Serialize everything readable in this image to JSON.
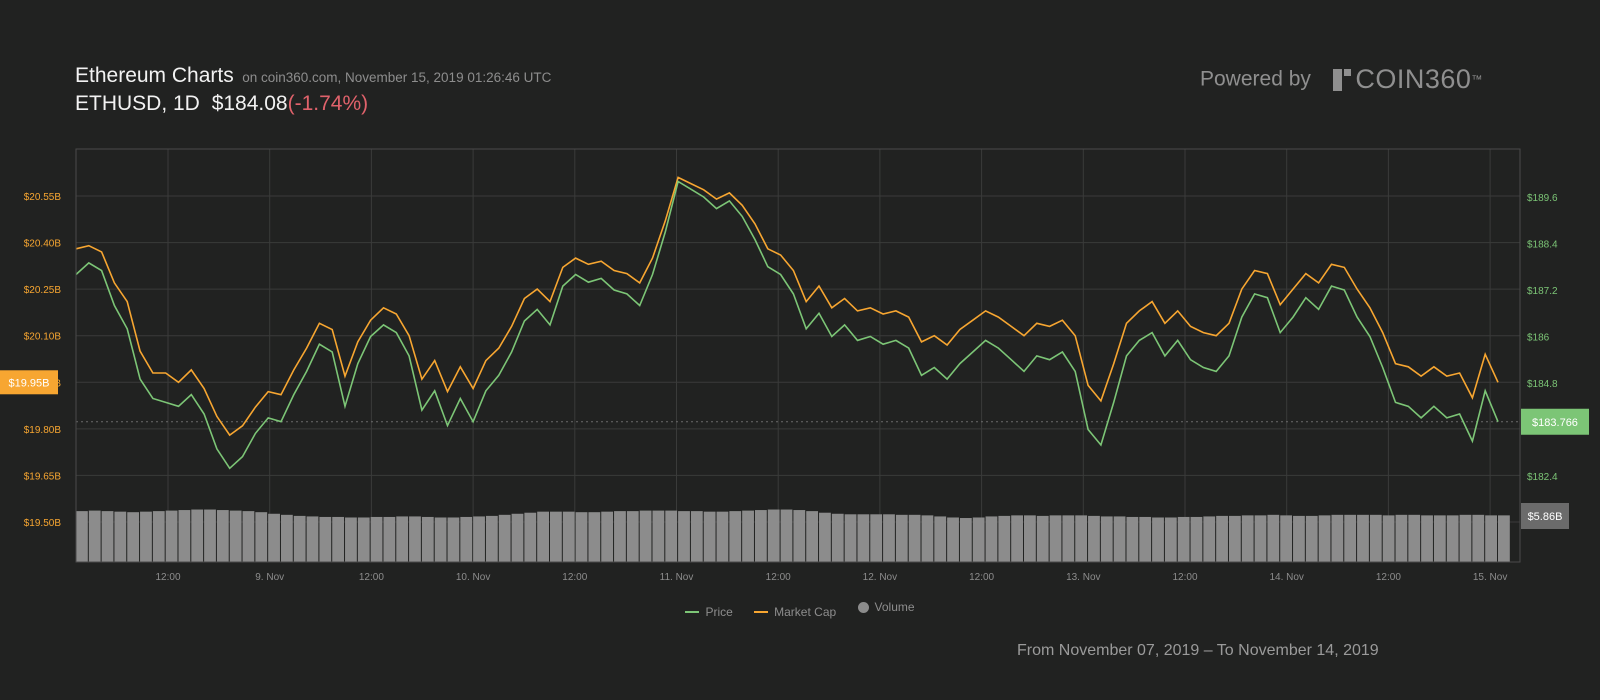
{
  "header": {
    "title": "Ethereum Charts",
    "subtitle": "on coin360.com, November 15, 2019 01:26:46 UTC",
    "pair": "ETHUSD, 1D",
    "price": "$184.08",
    "change": "(-1.74%)"
  },
  "branding": {
    "powered_by": "Powered by",
    "logo_text": "COIN360",
    "logo_tm": "™"
  },
  "footer": {
    "range": "From November 07, 2019 – To November 14, 2019"
  },
  "colors": {
    "background": "#212221",
    "price": "#7cc576",
    "market_cap": "#f7a631",
    "volume": "#8c8c8c",
    "change": "#e0626b"
  },
  "chart_data": {
    "type": "line",
    "x_ticks": [
      "12:00",
      "9. Nov",
      "12:00",
      "10. Nov",
      "12:00",
      "11. Nov",
      "12:00",
      "12. Nov",
      "12:00",
      "13. Nov",
      "12:00",
      "14. Nov",
      "12:00",
      "15. Nov"
    ],
    "y_left_ticks": [
      "$19.50B",
      "$19.65B",
      "$19.80B",
      "$19.95B",
      "$20.10B",
      "$20.25B",
      "$20.40B",
      "$20.55B"
    ],
    "y_right_ticks": [
      "$182.4",
      "$184.8",
      "$186",
      "$187.2",
      "$188.4",
      "$189.6"
    ],
    "y_left_range": [
      19.5,
      20.55
    ],
    "y_right_range": [
      182.4,
      189.6
    ],
    "current_market_cap_label": "$19.95B",
    "current_price_label": "$183.766",
    "current_volume_label": "$5.86B",
    "legend": [
      "Price",
      "Market Cap",
      "Volume"
    ],
    "grid": true,
    "series": [
      {
        "name": "Price",
        "axis": "right",
        "values": [
          187.6,
          187.9,
          187.7,
          186.8,
          186.2,
          184.9,
          184.4,
          184.3,
          184.2,
          184.5,
          184.0,
          183.1,
          182.6,
          182.9,
          183.5,
          183.9,
          183.8,
          184.5,
          185.1,
          185.8,
          185.6,
          184.2,
          185.3,
          186.0,
          186.3,
          186.1,
          185.5,
          184.1,
          184.6,
          183.7,
          184.4,
          183.8,
          184.6,
          185.0,
          185.6,
          186.4,
          186.7,
          186.3,
          187.3,
          187.6,
          187.4,
          187.5,
          187.2,
          187.1,
          186.8,
          187.6,
          188.7,
          190.0,
          189.8,
          189.6,
          189.3,
          189.5,
          189.1,
          188.5,
          187.8,
          187.6,
          187.1,
          186.2,
          186.6,
          186.0,
          186.3,
          185.9,
          186.0,
          185.8,
          185.9,
          185.7,
          185.0,
          185.2,
          184.9,
          185.3,
          185.6,
          185.9,
          185.7,
          185.4,
          185.1,
          185.5,
          185.4,
          185.6,
          185.1,
          183.6,
          183.2,
          184.3,
          185.5,
          185.9,
          186.1,
          185.5,
          185.9,
          185.4,
          185.2,
          185.1,
          185.5,
          186.5,
          187.1,
          187.0,
          186.1,
          186.5,
          187.0,
          186.7,
          187.3,
          187.2,
          186.5,
          186.0,
          185.2,
          184.3,
          184.2,
          183.9,
          184.2,
          183.9,
          184.0,
          183.3,
          184.6,
          183.8
        ],
        "note": "price series sampled across Nov 7 – Nov 14"
      },
      {
        "name": "Market Cap",
        "axis": "left",
        "values": [
          20.38,
          20.39,
          20.37,
          20.27,
          20.21,
          20.05,
          19.98,
          19.98,
          19.95,
          19.99,
          19.93,
          19.84,
          19.78,
          19.81,
          19.87,
          19.92,
          19.91,
          19.99,
          20.06,
          20.14,
          20.12,
          19.97,
          20.08,
          20.15,
          20.19,
          20.17,
          20.1,
          19.96,
          20.02,
          19.92,
          20.0,
          19.93,
          20.02,
          20.06,
          20.13,
          20.22,
          20.25,
          20.21,
          20.32,
          20.35,
          20.33,
          20.34,
          20.31,
          20.3,
          20.27,
          20.35,
          20.47,
          20.61,
          20.59,
          20.57,
          20.54,
          20.56,
          20.52,
          20.46,
          20.38,
          20.36,
          20.31,
          20.21,
          20.26,
          20.19,
          20.22,
          20.18,
          20.19,
          20.17,
          20.18,
          20.16,
          20.08,
          20.1,
          20.07,
          20.12,
          20.15,
          20.18,
          20.16,
          20.13,
          20.1,
          20.14,
          20.13,
          20.15,
          20.1,
          19.94,
          19.89,
          20.01,
          20.14,
          20.18,
          20.21,
          20.14,
          20.18,
          20.13,
          20.11,
          20.1,
          20.14,
          20.25,
          20.31,
          20.3,
          20.2,
          20.25,
          20.3,
          20.27,
          20.33,
          20.32,
          20.25,
          20.19,
          20.11,
          20.01,
          20.0,
          19.97,
          20.0,
          19.97,
          19.98,
          19.9,
          20.04,
          19.95
        ]
      },
      {
        "name": "Volume",
        "axis": "volume",
        "values": [
          0.96,
          0.97,
          0.96,
          0.95,
          0.94,
          0.95,
          0.96,
          0.97,
          0.98,
          0.99,
          0.99,
          0.98,
          0.97,
          0.96,
          0.94,
          0.91,
          0.89,
          0.87,
          0.86,
          0.85,
          0.85,
          0.84,
          0.84,
          0.85,
          0.85,
          0.86,
          0.86,
          0.85,
          0.84,
          0.84,
          0.85,
          0.86,
          0.87,
          0.89,
          0.91,
          0.93,
          0.95,
          0.95,
          0.95,
          0.94,
          0.94,
          0.95,
          0.96,
          0.96,
          0.97,
          0.97,
          0.97,
          0.96,
          0.96,
          0.95,
          0.95,
          0.96,
          0.97,
          0.98,
          0.99,
          0.99,
          0.98,
          0.96,
          0.93,
          0.91,
          0.9,
          0.9,
          0.9,
          0.9,
          0.89,
          0.89,
          0.88,
          0.86,
          0.84,
          0.83,
          0.84,
          0.86,
          0.87,
          0.88,
          0.88,
          0.87,
          0.88,
          0.88,
          0.88,
          0.87,
          0.86,
          0.86,
          0.85,
          0.85,
          0.84,
          0.84,
          0.85,
          0.85,
          0.86,
          0.87,
          0.87,
          0.88,
          0.88,
          0.89,
          0.88,
          0.87,
          0.87,
          0.88,
          0.89,
          0.89,
          0.89,
          0.89,
          0.88,
          0.89,
          0.89,
          0.88,
          0.88,
          0.88,
          0.89,
          0.89,
          0.88,
          0.88
        ]
      }
    ]
  }
}
